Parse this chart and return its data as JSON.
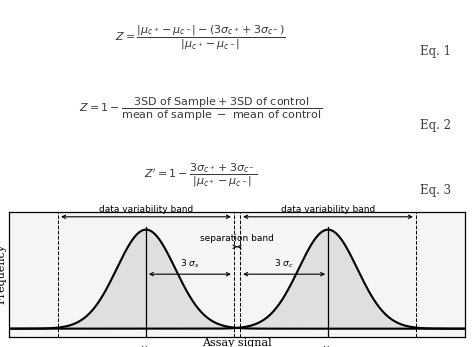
{
  "bg_color": "#ffffff",
  "eq1_label": "Eq. 1",
  "eq2_label": "Eq. 2",
  "eq3_label": "Eq. 3",
  "mu_s": -2.8,
  "mu_c": 2.8,
  "sigma_s": 0.9,
  "sigma_c": 0.9,
  "xlabel": "Assay signal",
  "ylabel": "Frequency",
  "sep_band_label": "separation band",
  "var_band_label": "data variability band",
  "xmin": -7.0,
  "xmax": 7.0
}
